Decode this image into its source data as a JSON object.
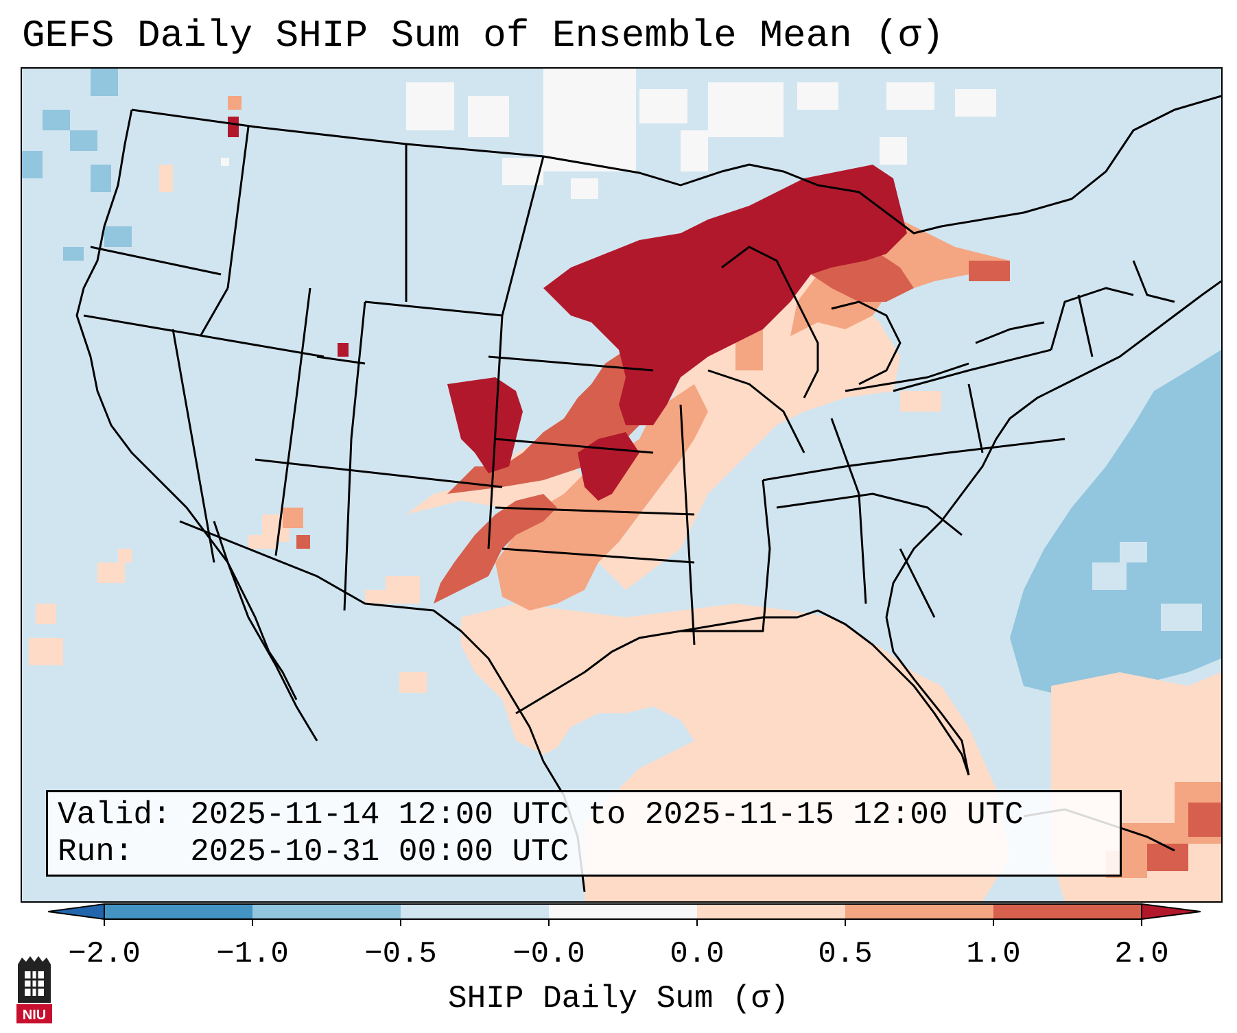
{
  "title": "GEFS Daily SHIP Sum of Ensemble Mean (σ)",
  "info": {
    "valid_label": "Valid:",
    "valid_value": "2025-11-14 12:00 UTC to 2025-11-15 12:00 UTC",
    "run_label": "Run:",
    "run_value": "2025-10-31 00:00 UTC"
  },
  "colorbar": {
    "label": "SHIP Daily Sum (σ)",
    "ticks": [
      "−2.0",
      "−1.0",
      "−0.5",
      "−0.0",
      "0.0",
      "0.5",
      "1.0",
      "2.0"
    ],
    "colors": [
      "#2166ac",
      "#4393c3",
      "#92c5de",
      "#d1e5f0",
      "#f7f7f7",
      "#fddbc7",
      "#f4a582",
      "#d6604d",
      "#b2182b"
    ]
  },
  "logo": {
    "text": "NIU"
  }
}
